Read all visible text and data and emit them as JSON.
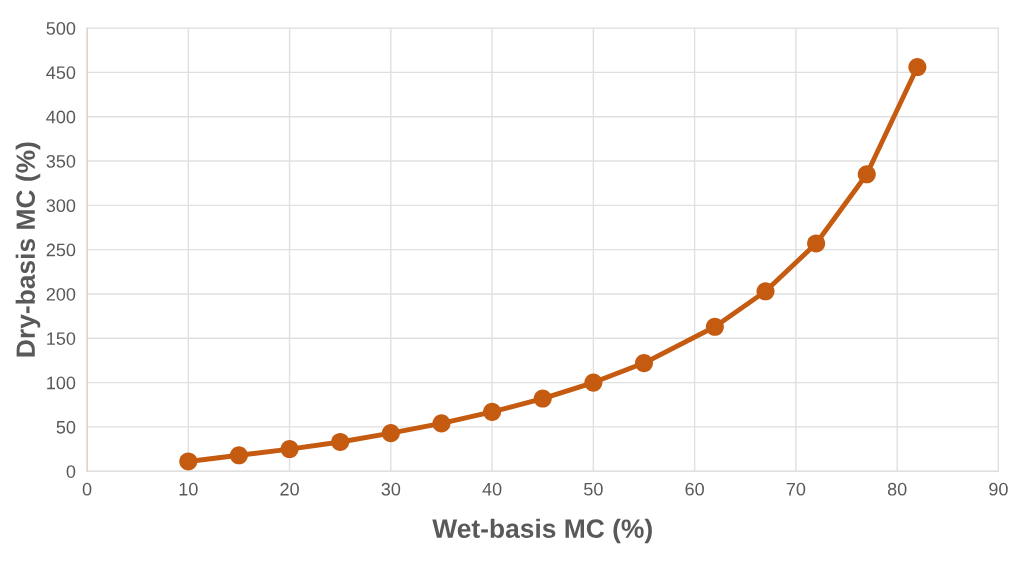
{
  "chart_data": {
    "type": "line",
    "xlabel": "Wet-basis MC (%)",
    "ylabel": "Dry-basis MC (%)",
    "x": [
      10,
      15,
      20,
      25,
      30,
      35,
      40,
      45,
      50,
      55,
      62,
      67,
      72,
      77,
      82
    ],
    "series": [
      {
        "color": "#c55a11",
        "values": [
          11,
          18,
          25,
          33,
          43,
          54,
          67,
          82,
          100,
          122,
          163,
          203,
          257,
          335,
          456
        ]
      }
    ],
    "xlim": [
      0,
      90
    ],
    "xticks": [
      0,
      10,
      20,
      30,
      40,
      50,
      60,
      70,
      80,
      90
    ],
    "ylim": [
      0,
      500
    ],
    "yticks": [
      0,
      50,
      100,
      150,
      200,
      250,
      300,
      350,
      400,
      450,
      500
    ],
    "grid": true,
    "marker": "circle",
    "line_style": "solid"
  }
}
